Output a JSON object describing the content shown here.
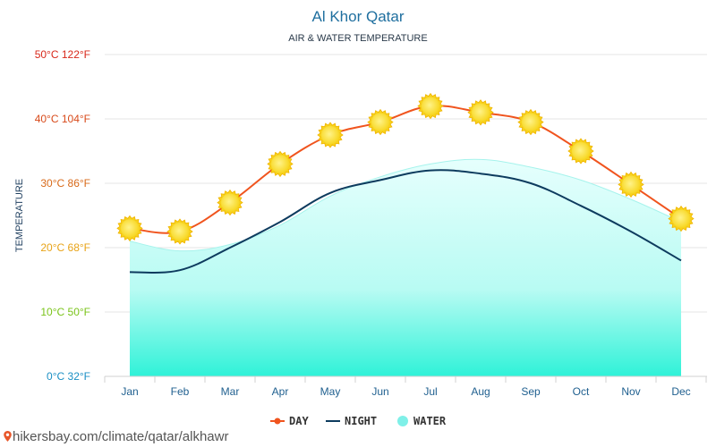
{
  "chart_data": {
    "type": "line",
    "title": "Al Khor Qatar",
    "subtitle": "AIR & WATER TEMPERATURE",
    "ylabel": "TEMPERATURE",
    "categories": [
      "Jan",
      "Feb",
      "Mar",
      "Apr",
      "May",
      "Jun",
      "Jul",
      "Aug",
      "Sep",
      "Oct",
      "Nov",
      "Dec"
    ],
    "ylim": [
      0,
      50
    ],
    "yticks": [
      {
        "value": 0,
        "label": "0°C 32°F",
        "color": "#1a8fc4"
      },
      {
        "value": 10,
        "label": "10°C 50°F",
        "color": "#7ac41a"
      },
      {
        "value": 20,
        "label": "20°C 68°F",
        "color": "#e8a317"
      },
      {
        "value": 30,
        "label": "30°C 86°F",
        "color": "#d86a1a"
      },
      {
        "value": 40,
        "label": "40°C 104°F",
        "color": "#d84a1a"
      },
      {
        "value": 50,
        "label": "50°C 122°F",
        "color": "#d8281a"
      }
    ],
    "grid": true,
    "legend_position": "bottom",
    "series": [
      {
        "name": "DAY",
        "kind": "line",
        "color": "#f0541e",
        "marker": "sun",
        "values": [
          23,
          22.5,
          27,
          33,
          37.5,
          39.5,
          42,
          41,
          39.5,
          35,
          29.8,
          24.5
        ]
      },
      {
        "name": "NIGHT",
        "kind": "line",
        "color": "#0d3b5e",
        "values": [
          16.2,
          16.5,
          20,
          24,
          28.5,
          30.5,
          32,
          31.5,
          30,
          26.5,
          22.5,
          18
        ]
      },
      {
        "name": "WATER",
        "kind": "area",
        "color": "#7ff0e8",
        "values": [
          21,
          19.5,
          20.5,
          23.5,
          28,
          31,
          33,
          33.7,
          32.5,
          30.5,
          27.5,
          24
        ]
      }
    ]
  },
  "footer": {
    "source": "hikersbay.com/climate/qatar/alkhawr"
  }
}
